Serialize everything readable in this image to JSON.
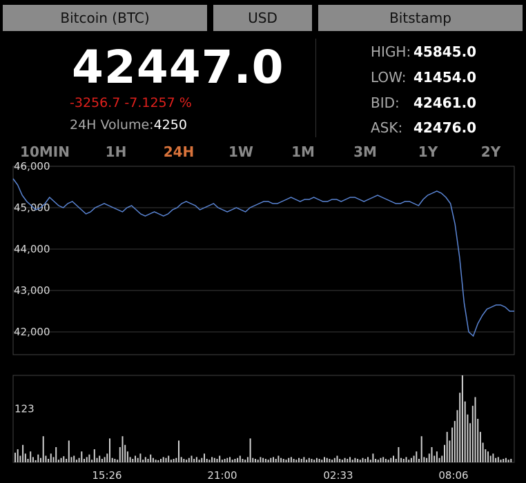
{
  "selectors": {
    "coin": "Bitcoin (BTC)",
    "currency": "USD",
    "exchange": "Bitstamp"
  },
  "ticker": {
    "last": "42447.0",
    "change": "-3256.7 -7.1257 %",
    "volume_label": "24H Volume:",
    "volume_value": "4250",
    "stats": [
      {
        "label": "HIGH:",
        "value": "45845.0"
      },
      {
        "label": "LOW:",
        "value": "41454.0"
      },
      {
        "label": "BID:",
        "value": "42461.0"
      },
      {
        "label": "ASK:",
        "value": "42476.0"
      }
    ]
  },
  "tabs": [
    "10MIN",
    "1H",
    "24H",
    "1W",
    "1M",
    "3M",
    "1Y",
    "2Y"
  ],
  "active_tab": "24H",
  "colors": {
    "background": "#000000",
    "price_line": "#5b86d6",
    "change_negative": "#e0201c",
    "active_tab": "#d9733b",
    "volume_bars": "#d0d0d0"
  },
  "chart_data": [
    {
      "type": "line",
      "title": "",
      "ylim": [
        41800,
        46000
      ],
      "yticks": [
        "46,000",
        "45,000",
        "44,000",
        "43,000",
        "42,000"
      ],
      "ytick_values": [
        46000,
        45000,
        44000,
        43000,
        42000
      ],
      "grid": true,
      "series": [
        {
          "values": [
            45700,
            45550,
            45300,
            45150,
            45050,
            44950,
            45000,
            45100,
            45250,
            45150,
            45050,
            45000,
            45100,
            45150,
            45050,
            44950,
            44850,
            44900,
            45000,
            45050,
            45100,
            45050,
            45000,
            44950,
            44900,
            45000,
            45050,
            44950,
            44850,
            44800,
            44850,
            44900,
            44850,
            44800,
            44850,
            44950,
            45000,
            45100,
            45150,
            45100,
            45050,
            44950,
            45000,
            45050,
            45100,
            45000,
            44950,
            44900,
            44950,
            45000,
            44950,
            44900,
            45000,
            45050,
            45100,
            45150,
            45150,
            45100,
            45100,
            45150,
            45200,
            45250,
            45200,
            45150,
            45200,
            45200,
            45250,
            45200,
            45150,
            45150,
            45200,
            45200,
            45150,
            45200,
            45250,
            45250,
            45200,
            45150,
            45200,
            45250,
            45300,
            45250,
            45200,
            45150,
            45100,
            45100,
            45150,
            45150,
            45100,
            45050,
            45200,
            45300,
            45350,
            45400,
            45350,
            45250,
            45100,
            44600,
            43800,
            42700,
            42000,
            41900,
            42200,
            42400,
            42550,
            42600,
            42650,
            42650,
            42600,
            42500,
            42500
          ]
        }
      ]
    },
    {
      "type": "bar",
      "title": "",
      "x_ticks": [
        "15:26",
        "21:00",
        "02:33",
        "08:06"
      ],
      "yticks": [
        "123"
      ],
      "ytick_values": [
        123
      ],
      "ylim": [
        0,
        200
      ],
      "series": [
        {
          "values": [
            22,
            30,
            15,
            40,
            20,
            8,
            25,
            12,
            5,
            18,
            10,
            60,
            15,
            8,
            20,
            12,
            35,
            6,
            10,
            14,
            8,
            50,
            12,
            15,
            6,
            10,
            25,
            8,
            12,
            18,
            6,
            30,
            10,
            15,
            8,
            12,
            20,
            55,
            10,
            8,
            6,
            35,
            60,
            40,
            25,
            12,
            8,
            15,
            10,
            20,
            6,
            12,
            8,
            18,
            10,
            6,
            5,
            8,
            12,
            10,
            15,
            6,
            8,
            10,
            50,
            12,
            8,
            6,
            10,
            15,
            8,
            12,
            6,
            10,
            20,
            8,
            6,
            12,
            10,
            8,
            15,
            6,
            8,
            10,
            12,
            6,
            8,
            10,
            15,
            8,
            6,
            12,
            55,
            10,
            8,
            6,
            12,
            10,
            8,
            6,
            10,
            12,
            8,
            15,
            10,
            8,
            6,
            10,
            12,
            8,
            6,
            10,
            8,
            12,
            6,
            10,
            8,
            6,
            10,
            8,
            6,
            12,
            10,
            8,
            6,
            10,
            15,
            8,
            6,
            10,
            8,
            12,
            6,
            10,
            8,
            6,
            10,
            8,
            12,
            6,
            20,
            8,
            6,
            10,
            12,
            8,
            6,
            10,
            15,
            8,
            35,
            10,
            8,
            12,
            6,
            10,
            15,
            25,
            8,
            60,
            12,
            10,
            20,
            35,
            15,
            25,
            10,
            15,
            40,
            70,
            50,
            80,
            95,
            120,
            160,
            200,
            140,
            110,
            90,
            130,
            150,
            100,
            70,
            45,
            30,
            25,
            15,
            20,
            10,
            12,
            6,
            8,
            10,
            6,
            8
          ]
        }
      ]
    }
  ]
}
